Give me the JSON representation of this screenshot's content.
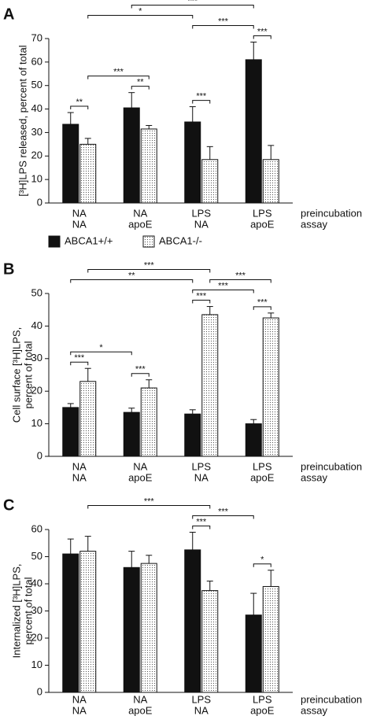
{
  "chart_data": [
    {
      "type": "bar",
      "panel": "A",
      "y_label": [
        "[³H]LPS released, percent of total"
      ],
      "categories": [
        [
          "NA",
          "NA"
        ],
        [
          "NA",
          "apoE"
        ],
        [
          "LPS",
          "NA"
        ],
        [
          "LPS",
          "apoE"
        ]
      ],
      "row_labels": [
        "preincubation",
        "assay"
      ],
      "series": [
        {
          "name": "ABCA1+/+",
          "color": "#111111",
          "fill_style": "solid",
          "values": [
            33.5,
            40.5,
            34.5,
            61
          ],
          "errors": [
            5,
            6.5,
            6.5,
            7.5
          ]
        },
        {
          "name": "ABCA1-/-",
          "color": "#ffffff",
          "fill_style": "dotted",
          "values": [
            25,
            31.5,
            18.5,
            18.5
          ],
          "errors": [
            2.5,
            1.5,
            5.5,
            6
          ]
        }
      ],
      "ylim": [
        0,
        70
      ],
      "yticks": [
        0,
        10,
        20,
        30,
        40,
        50,
        60,
        70
      ],
      "significance": [
        {
          "label": "**",
          "bars": [
            [
              0,
              0
            ],
            [
              0,
              1
            ]
          ]
        },
        {
          "label": "**",
          "bars": [
            [
              1,
              0
            ],
            [
              1,
              1
            ]
          ]
        },
        {
          "label": "***",
          "bars": [
            [
              2,
              0
            ],
            [
              2,
              1
            ]
          ]
        },
        {
          "label": "***",
          "bars": [
            [
              3,
              0
            ],
            [
              3,
              1
            ]
          ]
        },
        {
          "label": "***",
          "bars": [
            [
              0,
              1
            ],
            [
              1,
              1
            ]
          ]
        },
        {
          "label": "*",
          "bars": [
            [
              0,
              1
            ],
            [
              2,
              0
            ]
          ]
        },
        {
          "label": "*",
          "bars": [
            [
              0,
              0
            ],
            [
              3,
              0
            ]
          ]
        },
        {
          "label": "***",
          "bars": [
            [
              1,
              0
            ],
            [
              3,
              0
            ]
          ]
        },
        {
          "label": "***",
          "bars": [
            [
              2,
              0
            ],
            [
              3,
              0
            ]
          ]
        },
        {
          "label": "***",
          "bars": [
            [
              1,
              1
            ],
            [
              3,
              1
            ]
          ]
        }
      ]
    },
    {
      "type": "bar",
      "panel": "B",
      "y_label": [
        "Cell surface [³H]LPS,",
        "percent of total"
      ],
      "categories": [
        [
          "NA",
          "NA"
        ],
        [
          "NA",
          "apoE"
        ],
        [
          "LPS",
          "NA"
        ],
        [
          "LPS",
          "apoE"
        ]
      ],
      "row_labels": [
        "preincubation",
        "assay"
      ],
      "series": [
        {
          "color": "#111111",
          "fill_style": "solid",
          "values": [
            15,
            13.5,
            13,
            10
          ],
          "errors": [
            1.2,
            1.3,
            1.3,
            1.3
          ]
        },
        {
          "color": "#ffffff",
          "fill_style": "dotted",
          "values": [
            23,
            21,
            43.5,
            42.5
          ],
          "errors": [
            4,
            2.5,
            2.5,
            1.5
          ]
        }
      ],
      "ylim": [
        0,
        50
      ],
      "yticks": [
        0,
        10,
        20,
        30,
        40,
        50
      ],
      "significance": [
        {
          "label": "***",
          "bars": [
            [
              0,
              0
            ],
            [
              0,
              1
            ]
          ]
        },
        {
          "label": "***",
          "bars": [
            [
              1,
              0
            ],
            [
              1,
              1
            ]
          ]
        },
        {
          "label": "***",
          "bars": [
            [
              2,
              0
            ],
            [
              2,
              1
            ]
          ]
        },
        {
          "label": "***",
          "bars": [
            [
              3,
              0
            ],
            [
              3,
              1
            ]
          ]
        },
        {
          "label": "*",
          "bars": [
            [
              0,
              0
            ],
            [
              1,
              0
            ]
          ]
        },
        {
          "label": "**",
          "bars": [
            [
              0,
              0
            ],
            [
              2,
              0
            ]
          ]
        },
        {
          "label": "***",
          "bars": [
            [
              2,
              0
            ],
            [
              3,
              0
            ]
          ]
        },
        {
          "label": "***",
          "bars": [
            [
              2,
              1
            ],
            [
              3,
              1
            ]
          ]
        },
        {
          "label": "***",
          "bars": [
            [
              0,
              1
            ],
            [
              2,
              1
            ]
          ]
        }
      ]
    },
    {
      "type": "bar",
      "panel": "C",
      "y_label": [
        "Internalized [³H]LPS,",
        "percent of total"
      ],
      "categories": [
        [
          "NA",
          "NA"
        ],
        [
          "NA",
          "apoE"
        ],
        [
          "LPS",
          "NA"
        ],
        [
          "LPS",
          "apoE"
        ]
      ],
      "row_labels": [
        "preincubation",
        "assay"
      ],
      "series": [
        {
          "color": "#111111",
          "fill_style": "solid",
          "values": [
            51,
            46,
            52.5,
            28.5
          ],
          "errors": [
            5.5,
            6,
            6.5,
            8
          ]
        },
        {
          "color": "#ffffff",
          "fill_style": "dotted",
          "values": [
            52,
            47.5,
            37.5,
            39
          ],
          "errors": [
            5.5,
            3,
            3.5,
            6
          ]
        }
      ],
      "ylim": [
        0,
        60
      ],
      "yticks": [
        0,
        10,
        20,
        30,
        40,
        50,
        60
      ],
      "significance": [
        {
          "label": "*",
          "bars": [
            [
              3,
              0
            ],
            [
              3,
              1
            ]
          ]
        },
        {
          "label": "***",
          "bars": [
            [
              2,
              0
            ],
            [
              2,
              1
            ]
          ]
        },
        {
          "label": "***",
          "bars": [
            [
              2,
              0
            ],
            [
              3,
              0
            ]
          ]
        },
        {
          "label": "***",
          "bars": [
            [
              0,
              1
            ],
            [
              2,
              1
            ]
          ]
        }
      ]
    }
  ]
}
